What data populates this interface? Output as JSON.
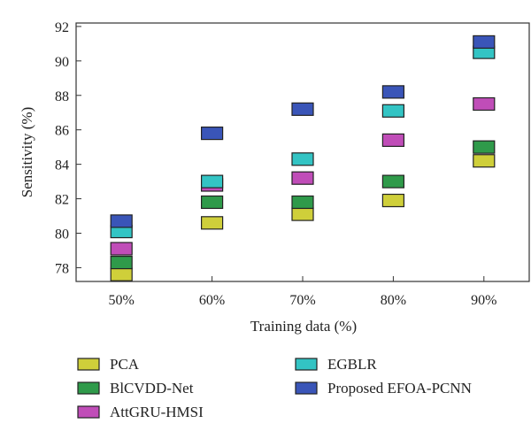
{
  "chart_data": {
    "type": "scatter",
    "title": "",
    "xlabel": "Training data (%)",
    "ylabel": "Sensitivity (%)",
    "categories": [
      "50%",
      "60%",
      "70%",
      "80%",
      "90%"
    ],
    "ylim": [
      77.2,
      92.2
    ],
    "yticks": [
      78,
      80,
      82,
      84,
      86,
      88,
      90,
      92
    ],
    "grid": false,
    "legend_position": "bottom",
    "series": [
      {
        "name": "PCA",
        "color": "#cfcf3a",
        "values": [
          77.6,
          80.6,
          81.1,
          81.9,
          84.2
        ]
      },
      {
        "name": "BlCVDD-Net",
        "color": "#2f9a4a",
        "values": [
          78.3,
          81.8,
          81.8,
          83.0,
          85.0
        ]
      },
      {
        "name": "AttGRU-HMSI",
        "color": "#c04db8",
        "values": [
          79.1,
          82.8,
          83.2,
          85.4,
          87.5
        ]
      },
      {
        "name": "EGBLR",
        "color": "#33c4c4",
        "values": [
          80.1,
          83.0,
          84.3,
          87.1,
          90.5
        ]
      },
      {
        "name": "Proposed EFOA-PCNN",
        "color": "#3a55b8",
        "values": [
          80.7,
          85.8,
          87.2,
          88.2,
          91.1
        ]
      }
    ]
  }
}
